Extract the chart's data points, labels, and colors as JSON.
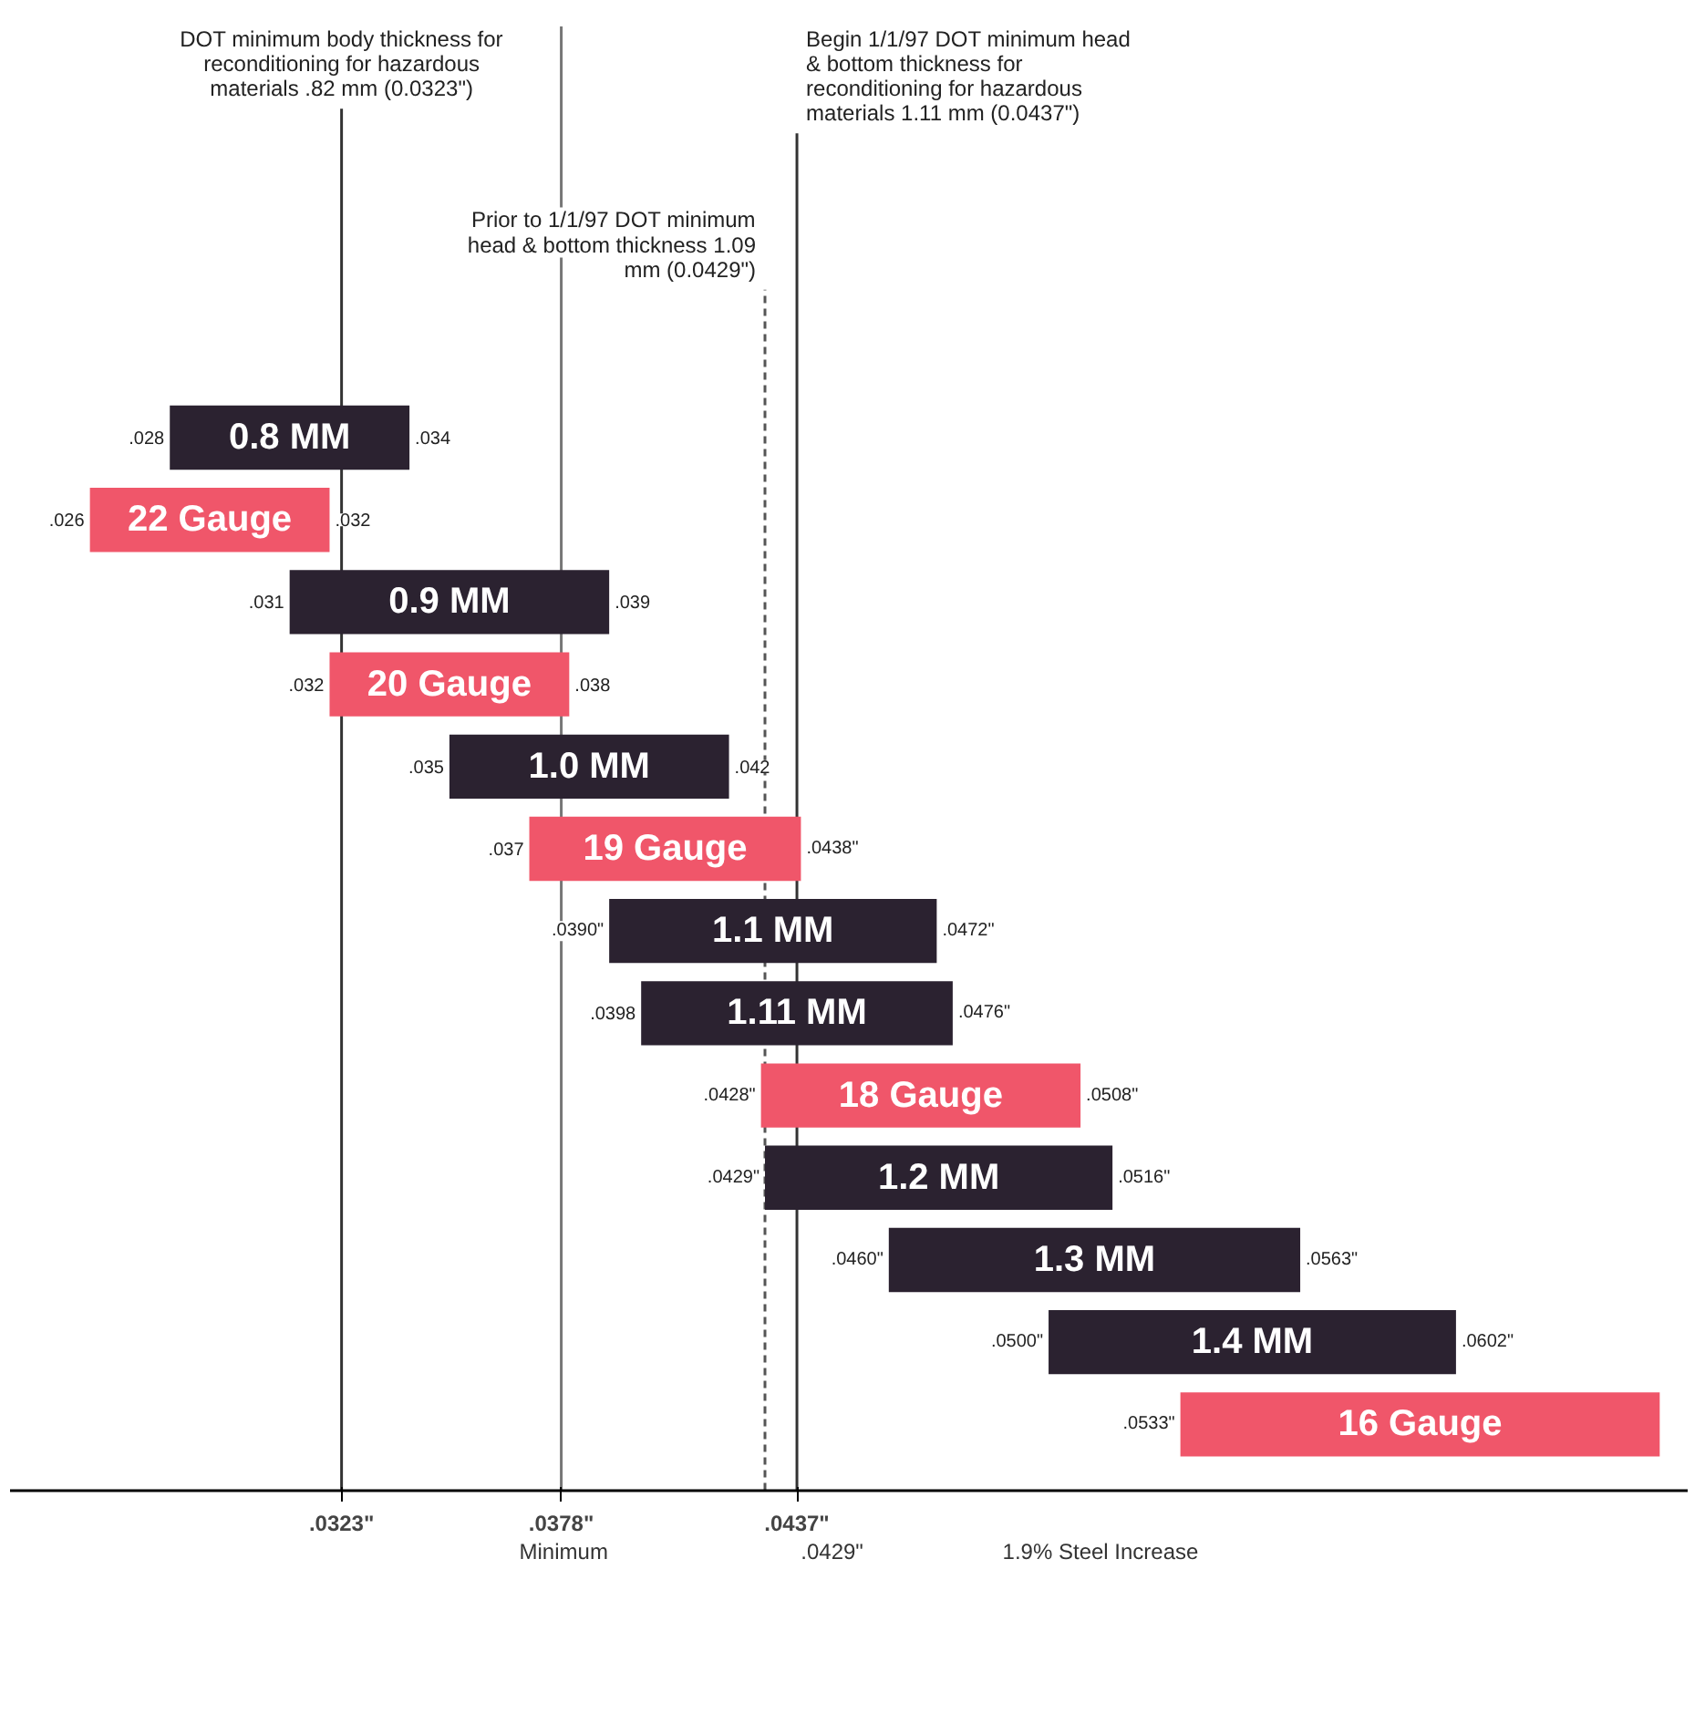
{
  "chart_data": {
    "type": "bar",
    "orientation": "horizontal",
    "tick_labels": "x",
    "categories": [
      "0.8 MM",
      "22 Gauge",
      "0.9 MM",
      "20 Gauge",
      "1.0 MM",
      "19 Gauge",
      "1.1 MM",
      "1.11 MM",
      "18 Gauge",
      "1.2 MM",
      "1.3 MM",
      "1.4 MM",
      "16 Gauge"
    ],
    "base": [
      0.028,
      0.026,
      0.031,
      0.032,
      0.035,
      0.037,
      0.039,
      0.0398,
      0.0428,
      0.0429,
      0.046,
      0.05,
      0.0533
    ],
    "values": [
      0.006,
      0.006,
      0.008,
      0.006,
      0.007,
      0.0068,
      0.0082,
      0.0078,
      0.008,
      0.0087,
      0.0103,
      0.0102,
      0.012
    ],
    "colors": [
      "#2b2230",
      "#f0566a",
      "#2b2230",
      "#f0566a",
      "#2b2230",
      "#f0566a",
      "#2b2230",
      "#2b2230",
      "#f0566a",
      "#2b2230",
      "#2b2230",
      "#2b2230",
      "#f0566a"
    ],
    "xlim": [
      0.024,
      0.066
    ],
    "xticks": [
      {
        "value": 0.0323,
        "label": ".0323\""
      },
      {
        "value": 0.0378,
        "label": ".0378\""
      },
      {
        "value": 0.0437,
        "label": ".0437\""
      }
    ],
    "ref_lines": [
      {
        "axis": "x",
        "value": 0.0323,
        "label": "DOT minimum body thickness for reconditioning for hazardous materials .82 mm (0.0323\")",
        "color": "#333333",
        "line_style": "solid"
      },
      {
        "axis": "x",
        "value": 0.0378,
        "color": "#777777",
        "line_style": "solid"
      },
      {
        "axis": "x",
        "value": 0.0429,
        "label": "Prior to 1/1/97 DOT minimum head & bottom thickness 1.09 mm (0.0429\")",
        "color": "#555555",
        "line_style": "dashed"
      },
      {
        "axis": "x",
        "value": 0.0437,
        "label": "Begin 1/1/97 DOT minimum head & bottom thickness for reconditioning for hazardous materials 1.11 mm (0.0437\")",
        "color": "#333333",
        "line_style": "solid"
      }
    ],
    "annotations": [
      {
        "text": ".028",
        "x": 0.028,
        "y": "0.8 MM"
      },
      {
        "text": ".034",
        "x": 0.034,
        "y": "0.8 MM"
      },
      {
        "text": ".026",
        "x": 0.026,
        "y": "22 Gauge"
      },
      {
        "text": ".032",
        "x": 0.032,
        "y": "22 Gauge"
      },
      {
        "text": ".031",
        "x": 0.031,
        "y": "0.9 MM"
      },
      {
        "text": ".039",
        "x": 0.039,
        "y": "0.9 MM"
      },
      {
        "text": ".032",
        "x": 0.032,
        "y": "20 Gauge"
      },
      {
        "text": ".038",
        "x": 0.038,
        "y": "20 Gauge"
      },
      {
        "text": ".035",
        "x": 0.035,
        "y": "1.0 MM"
      },
      {
        "text": ".042",
        "x": 0.042,
        "y": "1.0 MM"
      },
      {
        "text": ".037",
        "x": 0.037,
        "y": "19 Gauge"
      },
      {
        "text": ".0438\"",
        "x": 0.0438,
        "y": "19 Gauge"
      },
      {
        "text": ".0390\"",
        "x": 0.039,
        "y": "1.1 MM"
      },
      {
        "text": ".0472\"",
        "x": 0.0472,
        "y": "1.1 MM"
      },
      {
        "text": ".0398",
        "x": 0.0398,
        "y": "1.11 MM"
      },
      {
        "text": ".0476\"",
        "x": 0.0476,
        "y": "1.11 MM"
      },
      {
        "text": ".0428\"",
        "x": 0.0428,
        "y": "18 Gauge"
      },
      {
        "text": ".0508\"",
        "x": 0.0508,
        "y": "18 Gauge"
      },
      {
        "text": ".0429\"",
        "x": 0.0429,
        "y": "1.2 MM"
      },
      {
        "text": ".0516\"",
        "x": 0.0516,
        "y": "1.2 MM"
      },
      {
        "text": ".0460\"",
        "x": 0.046,
        "y": "1.3 MM"
      },
      {
        "text": ".0563\"",
        "x": 0.0563,
        "y": "1.3 MM"
      },
      {
        "text": ".0500\"",
        "x": 0.05,
        "y": "1.4 MM"
      },
      {
        "text": ".0602\"",
        "x": 0.0602,
        "y": "1.4 MM"
      },
      {
        "text": ".0533\"",
        "x": 0.0533,
        "y": "16 Gauge"
      },
      "Minimum",
      ".0429\"",
      "1.9% Steel Increase"
    ]
  }
}
